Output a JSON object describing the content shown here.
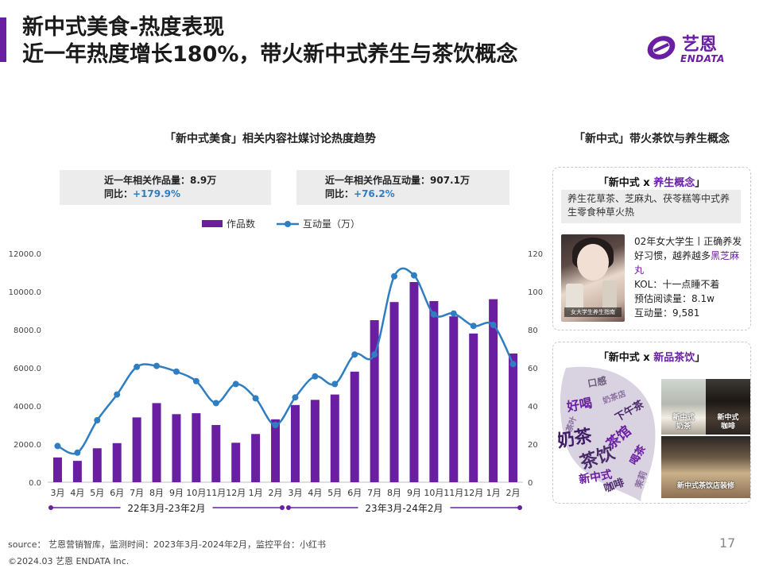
{
  "header": {
    "title_line1": "新中式美食-热度表现",
    "title_line2": "近一年热度增长180%，带火新中式养生与茶饮概念",
    "logo_cn": "艺恩",
    "logo_en": "ENDATA"
  },
  "chart_section": {
    "title": "「新中式美食」相关内容社媒讨论热度趋势",
    "stat1_line1": "近一年相关作品量：8.9万",
    "stat1_prefix": "同比：",
    "stat1_value": "+179.9%",
    "stat2_line1": "近一年相关作品互动量：907.1万",
    "stat2_prefix": "同比：",
    "stat2_value": "+76.2%"
  },
  "chart_data": {
    "type": "bar",
    "categories": [
      "3月",
      "4月",
      "5月",
      "6月",
      "7月",
      "8月",
      "9月",
      "10月",
      "11月",
      "12月",
      "1月",
      "2月",
      "3月",
      "4月",
      "5月",
      "6月",
      "7月",
      "8月",
      "9月",
      "10月",
      "11月",
      "12月",
      "1月",
      "2月"
    ],
    "series": [
      {
        "name": "作品数",
        "kind": "bar",
        "axis": "left",
        "values": [
          1300,
          1120,
          1780,
          2050,
          3400,
          4150,
          3570,
          3620,
          3000,
          2070,
          2530,
          3300,
          4050,
          4320,
          4600,
          5800,
          8500,
          9450,
          10500,
          9500,
          8700,
          7800,
          9600,
          6750
        ]
      },
      {
        "name": "互动量（万）",
        "kind": "line",
        "axis": "right",
        "values": [
          19,
          15.5,
          32.5,
          46,
          60.5,
          61,
          58,
          53,
          41.5,
          51.5,
          44,
          30,
          44.5,
          55.5,
          51.5,
          67,
          67,
          108,
          108.5,
          88,
          88.5,
          82,
          82.5,
          62
        ]
      }
    ],
    "y_left": {
      "min": 0,
      "max": 12000,
      "ticks": [
        "0.0",
        "2000.0",
        "4000.0",
        "6000.0",
        "8000.0",
        "10000.0",
        "12000.0"
      ]
    },
    "y_right": {
      "min": 0,
      "max": 120,
      "ticks": [
        "0",
        "20",
        "40",
        "60",
        "80",
        "100",
        "120"
      ]
    },
    "groups": [
      {
        "label": "22年3月-23年2月",
        "from": 0,
        "to": 11
      },
      {
        "label": "23年3月-24年2月",
        "from": 12,
        "to": 23
      }
    ],
    "legend_position": "top",
    "grid": false,
    "colors": {
      "bar": "#6a1fa2",
      "line": "#2f7ec1"
    }
  },
  "right_panel": {
    "title": "「新中式」带火茶饮与养生概念",
    "card1_label_pre": "「新中式 x ",
    "card1_label_hl": "养生概念",
    "card1_label_post": "」",
    "concept_text": "养生花草茶、芝麻丸、茯苓糕等中式养生零食种草火热",
    "photo_caption": "女大学生养生指南",
    "post_text": "02年女大学生丨正确养发好习惯，越养越多",
    "post_keyword": "黑芝麻丸",
    "post_kol": "KOL：十一点睡不着",
    "post_reads": "预估阅读量：8.1w",
    "post_interact": "互动量：9,581",
    "card2_label_pre": "「新中式 x ",
    "card2_label_hl": "新品茶饮",
    "card2_label_post": "」",
    "cloud_words": [
      "口感",
      "奶茶店",
      "下午茶",
      "好喝",
      "奶茶",
      "茶馆",
      "茶饮",
      "喝茶",
      "新中式",
      "咖啡",
      "茉莉",
      "茶叶"
    ],
    "drink1_caption_1": "新中式",
    "drink1_caption_2": "奶茶",
    "drink2_caption_1": "新中式",
    "drink2_caption_2": "咖啡",
    "shop_caption": "新中式茶饮店装修"
  },
  "footer": {
    "source": "source： 艺恩营销智库，监测时间：2023年3月-2024年2月，监控平台：小红书",
    "copyright": "©2024.03  艺恩 ENDATA Inc.",
    "page": "17"
  }
}
